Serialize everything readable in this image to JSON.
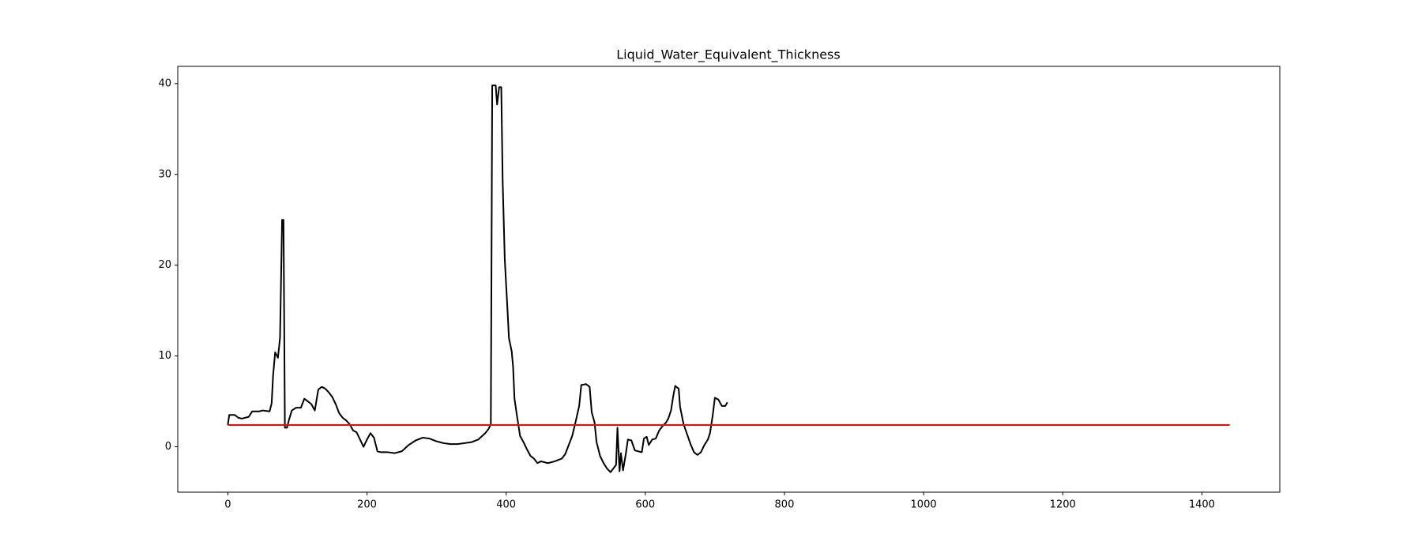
{
  "chart_data": {
    "type": "line",
    "title": "Liquid_Water_Equivalent_Thickness",
    "xlim": [
      -72,
      1512
    ],
    "xticks": [
      0,
      200,
      400,
      600,
      800,
      1000,
      1200,
      1400
    ],
    "ylim": [
      -5,
      41.9
    ],
    "yticks": [
      0,
      10,
      20,
      30,
      40
    ],
    "grid": false,
    "series": [
      {
        "color": "#000000",
        "x": [
          0,
          2,
          10,
          15,
          20,
          30,
          35,
          45,
          50,
          60,
          63,
          65,
          68,
          72,
          75,
          78,
          80,
          82,
          85,
          88,
          92,
          98,
          105,
          110,
          115,
          120,
          125,
          130,
          135,
          140,
          145,
          150,
          155,
          160,
          165,
          170,
          175,
          180,
          185,
          190,
          195,
          200,
          205,
          210,
          215,
          220,
          230,
          240,
          250,
          260,
          270,
          280,
          290,
          300,
          310,
          320,
          330,
          340,
          350,
          360,
          370,
          375,
          378,
          380,
          385,
          387,
          390,
          393,
          395,
          398,
          402,
          404,
          408,
          410,
          412,
          415,
          418,
          420,
          425,
          430,
          435,
          440,
          445,
          450,
          460,
          470,
          480,
          485,
          490,
          495,
          500,
          505,
          508,
          515,
          520,
          523,
          527,
          530,
          535,
          540,
          545,
          550,
          555,
          558,
          560,
          563,
          565,
          568,
          572,
          575,
          580,
          585,
          590,
          595,
          598,
          602,
          605,
          610,
          615,
          620,
          625,
          630,
          633,
          637,
          640,
          643,
          648,
          650,
          655,
          660,
          665,
          670,
          675,
          680,
          685,
          690,
          693,
          697,
          700,
          705,
          710,
          715,
          718
        ],
        "values": [
          2.4,
          3.5,
          3.5,
          3.2,
          3.1,
          3.3,
          3.9,
          3.9,
          4.0,
          3.9,
          4.8,
          7.8,
          10.4,
          9.8,
          12,
          25,
          25,
          2.1,
          2.1,
          3.0,
          4.0,
          4.3,
          4.3,
          5.3,
          5.0,
          4.7,
          4.0,
          6.3,
          6.6,
          6.4,
          6.0,
          5.5,
          4.7,
          3.7,
          3.2,
          2.9,
          2.5,
          1.8,
          1.6,
          0.8,
          0.0,
          0.8,
          1.5,
          1.0,
          -0.5,
          -0.6,
          -0.6,
          -0.7,
          -0.5,
          0.2,
          0.7,
          1.0,
          0.9,
          0.6,
          0.4,
          0.3,
          0.3,
          0.4,
          0.5,
          0.8,
          1.5,
          2.0,
          2.5,
          39.8,
          39.8,
          37.7,
          39.6,
          39.6,
          29.3,
          20.7,
          15,
          12,
          10.5,
          8.8,
          5.3,
          3.7,
          2.2,
          1.2,
          0.5,
          -0.3,
          -1.0,
          -1.3,
          -1.8,
          -1.6,
          -1.8,
          -1.6,
          -1.3,
          -0.8,
          0.2,
          1.2,
          2.8,
          4.5,
          6.8,
          6.9,
          6.6,
          3.8,
          2.7,
          0.5,
          -1.0,
          -1.8,
          -2.4,
          -2.8,
          -2.3,
          -2.0,
          2.1,
          -2.7,
          -0.7,
          -2.6,
          -0.8,
          0.8,
          0.7,
          -0.4,
          -0.5,
          -0.6,
          0.9,
          1.1,
          0.2,
          0.8,
          0.9,
          1.8,
          2.3,
          2.7,
          3.1,
          4.0,
          5.5,
          6.7,
          6.4,
          4.4,
          2.5,
          1.4,
          0.3,
          -0.6,
          -0.9,
          -0.6,
          0.2,
          0.8,
          1.5,
          3.5,
          5.4,
          5.2,
          4.5,
          4.5,
          4.9
        ]
      },
      {
        "color": "#ff0000",
        "x": [
          0,
          1440
        ],
        "values": [
          2.4,
          2.4
        ]
      }
    ]
  }
}
